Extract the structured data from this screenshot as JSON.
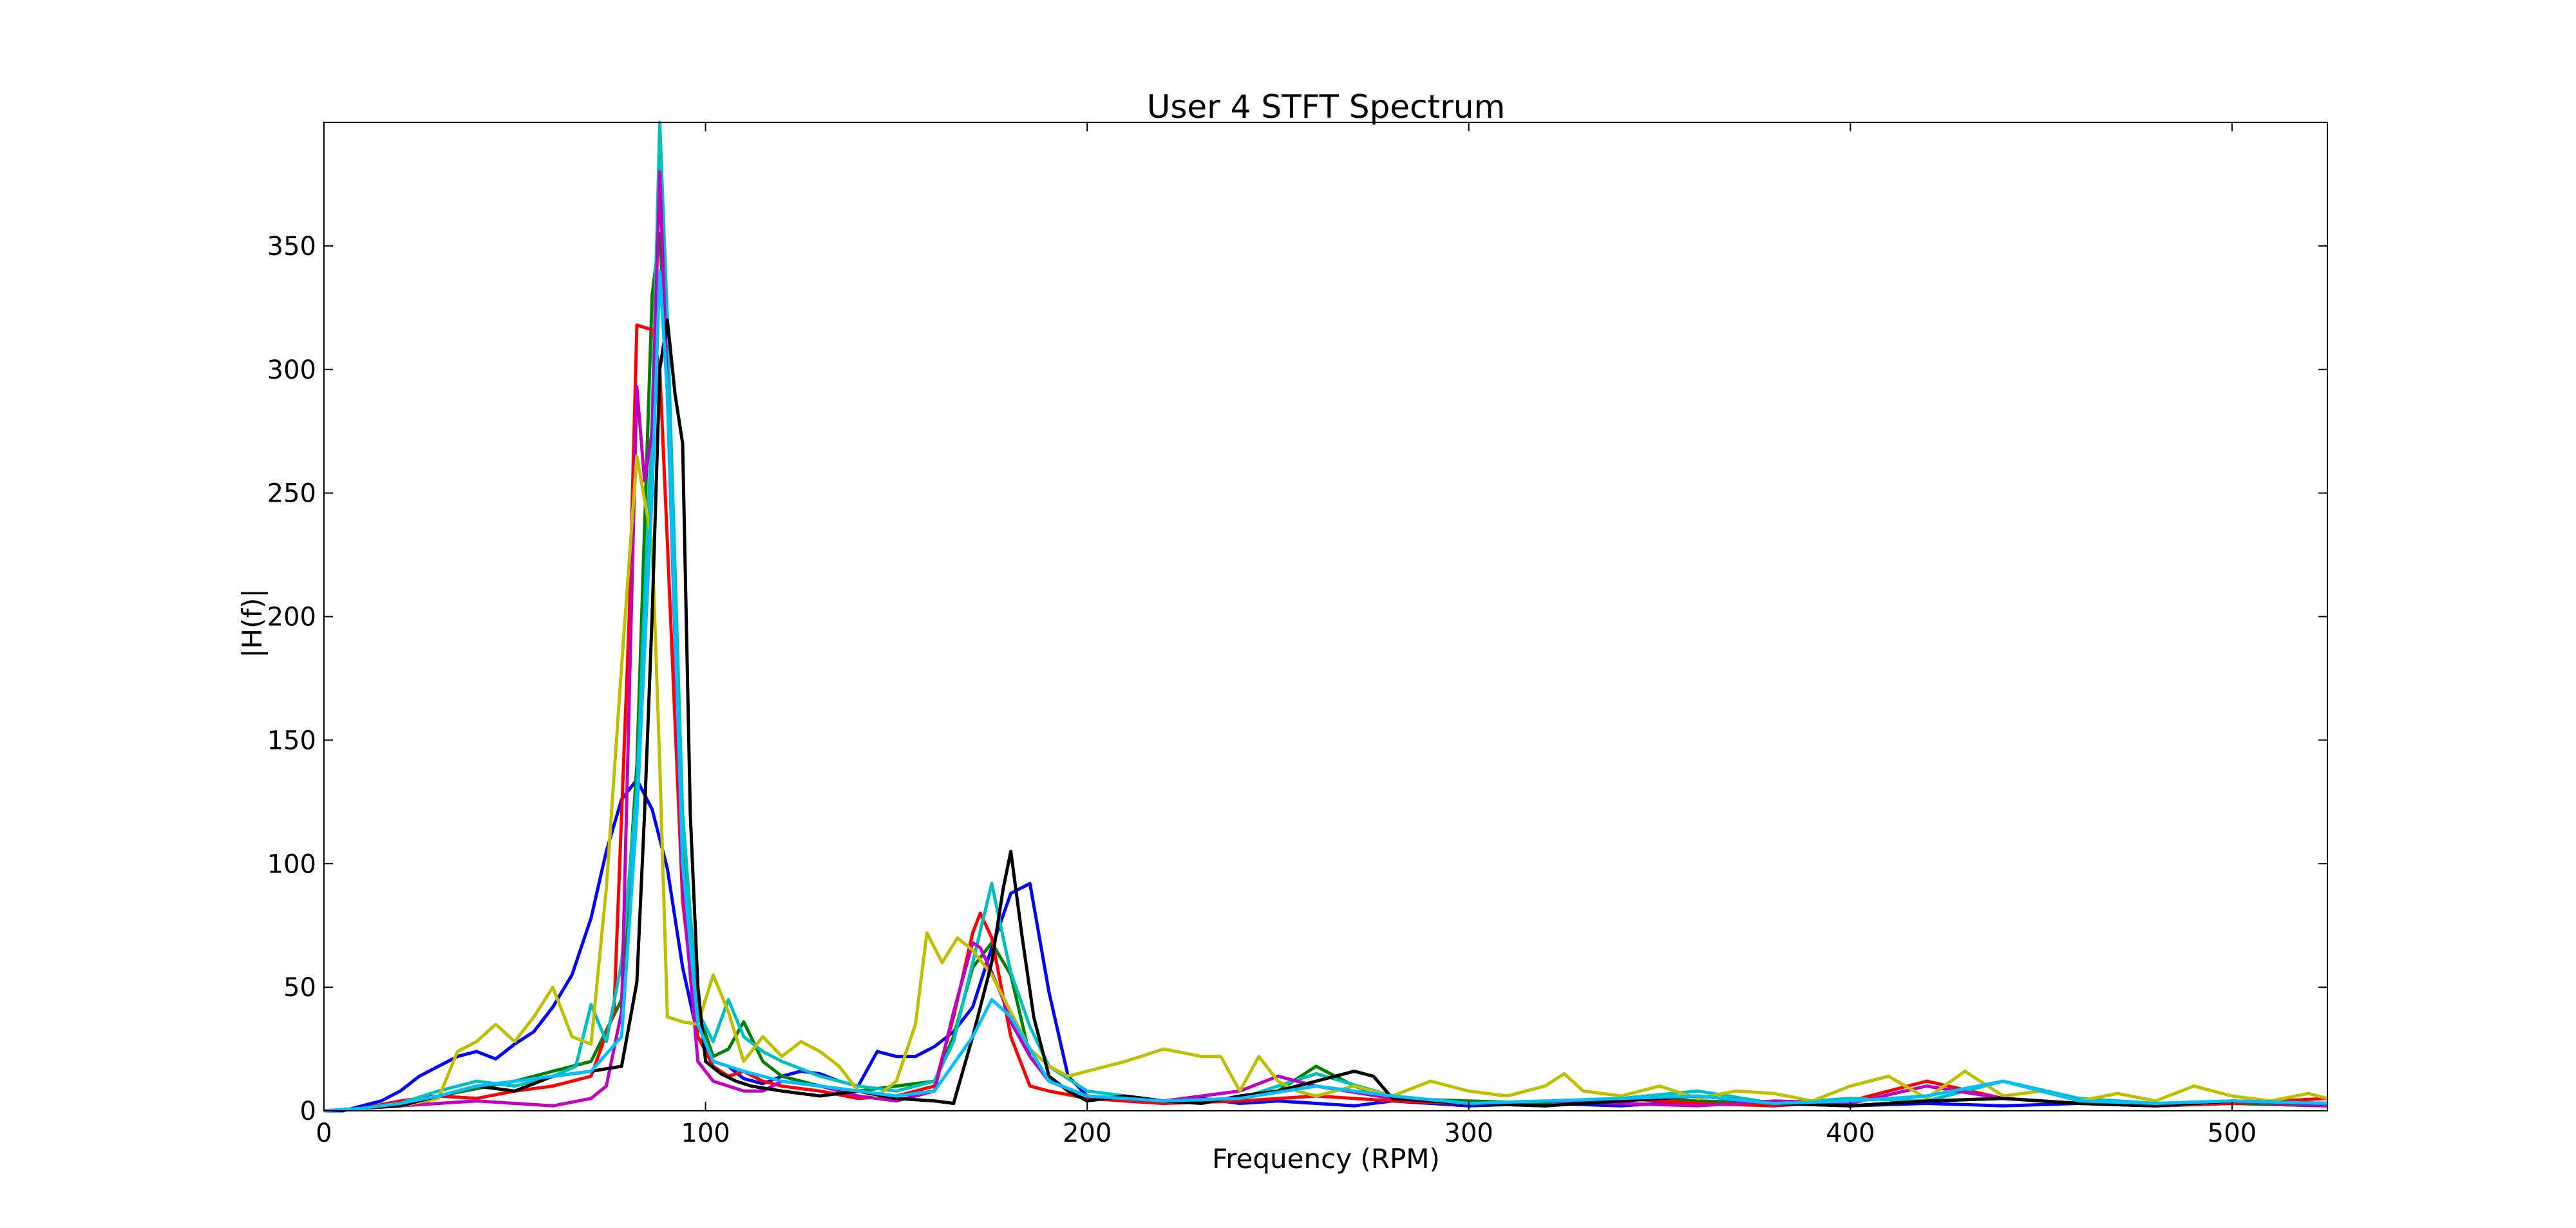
{
  "chart_data": {
    "type": "line",
    "title": "User 4 STFT Spectrum",
    "xlabel": "Frequency (RPM)",
    "ylabel": "|H(f)|",
    "xlim": [
      0,
      525
    ],
    "ylim": [
      0,
      400
    ],
    "x_ticks": [
      0,
      100,
      200,
      300,
      400,
      500
    ],
    "y_ticks": [
      0,
      50,
      100,
      150,
      200,
      250,
      300,
      350
    ],
    "grid": false,
    "legend": "none",
    "series": [
      {
        "color": "#0000ff",
        "x": [
          0,
          5,
          10,
          15,
          20,
          25,
          30,
          35,
          40,
          45,
          50,
          55,
          60,
          65,
          70,
          74,
          78,
          82,
          86,
          90,
          94,
          98,
          102,
          106,
          110,
          115,
          120,
          125,
          130,
          135,
          140,
          145,
          150,
          155,
          160,
          165,
          170,
          175,
          180,
          185,
          190,
          195,
          200,
          210,
          220,
          230,
          240,
          250,
          260,
          270,
          280,
          290,
          300,
          320,
          340,
          360,
          380,
          400,
          420,
          440,
          460,
          480,
          500,
          525
        ],
        "y": [
          0,
          0,
          2,
          4,
          8,
          14,
          18,
          22,
          24,
          21,
          27,
          32,
          42,
          55,
          78,
          105,
          126,
          134,
          122,
          98,
          58,
          30,
          20,
          18,
          13,
          11,
          14,
          16,
          15,
          12,
          10,
          24,
          22,
          22,
          26,
          32,
          42,
          66,
          88,
          92,
          48,
          14,
          6,
          4,
          3,
          5,
          3,
          4,
          3,
          2,
          4,
          3,
          2,
          3,
          2,
          4,
          3,
          2,
          3,
          2,
          3,
          2,
          3,
          2
        ]
      },
      {
        "color": "#008000",
        "x": [
          0,
          10,
          20,
          30,
          40,
          50,
          60,
          70,
          78,
          82,
          86,
          88,
          90,
          94,
          98,
          102,
          106,
          110,
          115,
          120,
          130,
          140,
          150,
          160,
          165,
          170,
          175,
          180,
          185,
          190,
          200,
          220,
          240,
          250,
          260,
          270,
          280,
          300,
          320,
          340,
          360,
          380,
          400,
          420,
          440,
          460,
          480,
          500,
          525
        ],
        "y": [
          0,
          1,
          3,
          6,
          9,
          12,
          16,
          20,
          45,
          140,
          330,
          355,
          290,
          110,
          40,
          22,
          25,
          36,
          20,
          14,
          10,
          8,
          10,
          12,
          30,
          58,
          68,
          55,
          22,
          12,
          6,
          4,
          5,
          8,
          18,
          10,
          5,
          4,
          3,
          5,
          4,
          3,
          2,
          4,
          5,
          3,
          2,
          3,
          2
        ]
      },
      {
        "color": "#ff0000",
        "x": [
          0,
          10,
          20,
          30,
          40,
          50,
          60,
          70,
          76,
          80,
          82,
          86,
          88,
          90,
          94,
          98,
          102,
          106,
          110,
          115,
          120,
          130,
          140,
          150,
          160,
          165,
          170,
          172,
          175,
          180,
          185,
          190,
          200,
          220,
          240,
          260,
          280,
          300,
          320,
          340,
          360,
          380,
          400,
          420,
          440,
          460,
          480,
          500,
          525
        ],
        "y": [
          0,
          1,
          4,
          6,
          5,
          8,
          10,
          14,
          40,
          200,
          318,
          316,
          300,
          230,
          85,
          30,
          18,
          14,
          16,
          12,
          10,
          8,
          5,
          6,
          10,
          38,
          72,
          80,
          70,
          30,
          10,
          8,
          5,
          3,
          4,
          6,
          4,
          3,
          2,
          5,
          3,
          2,
          4,
          12,
          5,
          3,
          2,
          3,
          5
        ]
      },
      {
        "color": "#00bfbf",
        "x": [
          0,
          10,
          20,
          30,
          40,
          50,
          60,
          66,
          70,
          74,
          78,
          82,
          86,
          88,
          90,
          94,
          98,
          102,
          106,
          110,
          115,
          120,
          130,
          140,
          150,
          160,
          165,
          170,
          175,
          178,
          180,
          185,
          190,
          200,
          220,
          240,
          260,
          280,
          300,
          320,
          340,
          360,
          380,
          400,
          420,
          440,
          460,
          480,
          500,
          525
        ],
        "y": [
          0,
          1,
          3,
          8,
          12,
          10,
          14,
          18,
          43,
          28,
          60,
          130,
          280,
          400,
          320,
          120,
          40,
          28,
          45,
          30,
          24,
          20,
          14,
          10,
          8,
          12,
          28,
          60,
          92,
          70,
          56,
          34,
          18,
          8,
          4,
          5,
          15,
          6,
          3,
          2,
          5,
          8,
          3,
          5,
          4,
          12,
          5,
          3,
          4,
          3
        ]
      },
      {
        "color": "#bf00bf",
        "x": [
          0,
          10,
          20,
          30,
          40,
          50,
          60,
          70,
          74,
          78,
          82,
          84,
          86,
          88,
          90,
          94,
          98,
          102,
          106,
          110,
          115,
          120,
          130,
          140,
          150,
          160,
          165,
          170,
          172,
          175,
          178,
          180,
          185,
          190,
          200,
          220,
          240,
          250,
          260,
          280,
          300,
          320,
          340,
          360,
          380,
          400,
          420,
          440,
          460,
          480,
          500,
          525
        ],
        "y": [
          0,
          1,
          2,
          3,
          4,
          3,
          2,
          5,
          10,
          40,
          293,
          255,
          275,
          380,
          290,
          90,
          20,
          12,
          10,
          8,
          8,
          12,
          10,
          6,
          4,
          8,
          40,
          68,
          66,
          56,
          45,
          36,
          22,
          12,
          6,
          4,
          8,
          14,
          10,
          5,
          3,
          4,
          3,
          2,
          4,
          3,
          10,
          5,
          3,
          2,
          4,
          2
        ]
      },
      {
        "color": "#bfbf00",
        "x": [
          0,
          10,
          20,
          30,
          35,
          40,
          45,
          50,
          55,
          60,
          65,
          70,
          74,
          78,
          82,
          86,
          88,
          90,
          94,
          98,
          102,
          106,
          110,
          115,
          120,
          125,
          130,
          135,
          140,
          145,
          150,
          155,
          158,
          162,
          166,
          170,
          175,
          180,
          185,
          190,
          195,
          200,
          210,
          220,
          230,
          235,
          240,
          245,
          250,
          255,
          260,
          270,
          280,
          290,
          300,
          310,
          320,
          325,
          330,
          340,
          350,
          360,
          370,
          380,
          390,
          400,
          410,
          420,
          430,
          440,
          450,
          460,
          470,
          480,
          490,
          500,
          510,
          520,
          525
        ],
        "y": [
          0,
          1,
          2,
          5,
          24,
          28,
          35,
          28,
          38,
          50,
          30,
          27,
          90,
          180,
          265,
          230,
          140,
          38,
          36,
          35,
          55,
          40,
          20,
          30,
          22,
          28,
          24,
          18,
          8,
          6,
          12,
          35,
          72,
          60,
          70,
          65,
          55,
          40,
          25,
          18,
          14,
          16,
          20,
          25,
          22,
          22,
          8,
          22,
          12,
          8,
          6,
          10,
          6,
          12,
          8,
          6,
          10,
          15,
          8,
          6,
          10,
          5,
          8,
          7,
          4,
          10,
          14,
          5,
          16,
          6,
          8,
          4,
          7,
          4,
          10,
          6,
          4,
          7,
          5
        ]
      },
      {
        "color": "#000000",
        "x": [
          0,
          10,
          20,
          30,
          40,
          50,
          60,
          70,
          78,
          82,
          84,
          86,
          88,
          90,
          92,
          94,
          96,
          98,
          100,
          104,
          108,
          112,
          120,
          130,
          140,
          150,
          160,
          165,
          170,
          175,
          178,
          180,
          183,
          186,
          190,
          195,
          200,
          210,
          220,
          230,
          240,
          250,
          260,
          270,
          275,
          280,
          290,
          300,
          320,
          340,
          360,
          380,
          400,
          420,
          440,
          460,
          480,
          500,
          525
        ],
        "y": [
          0,
          1,
          2,
          6,
          10,
          8,
          14,
          16,
          18,
          52,
          120,
          200,
          300,
          320,
          290,
          270,
          120,
          50,
          20,
          15,
          12,
          10,
          8,
          6,
          8,
          5,
          4,
          3,
          30,
          60,
          90,
          105,
          70,
          38,
          14,
          8,
          4,
          6,
          4,
          3,
          6,
          8,
          12,
          16,
          14,
          5,
          4,
          3,
          2,
          4,
          6,
          3,
          2,
          4,
          5,
          3,
          2,
          4,
          3
        ]
      },
      {
        "color": "#00bfff",
        "x": [
          0,
          10,
          20,
          30,
          40,
          50,
          60,
          70,
          78,
          82,
          86,
          88,
          90,
          94,
          98,
          102,
          106,
          110,
          120,
          130,
          140,
          150,
          160,
          170,
          175,
          180,
          185,
          190,
          200,
          220,
          240,
          260,
          280,
          300,
          320,
          340,
          360,
          380,
          400,
          420,
          440,
          460,
          480,
          500,
          525
        ],
        "y": [
          0,
          1,
          3,
          6,
          10,
          12,
          14,
          16,
          30,
          120,
          250,
          340,
          290,
          100,
          35,
          20,
          18,
          16,
          12,
          10,
          8,
          6,
          8,
          30,
          45,
          38,
          25,
          12,
          6,
          4,
          5,
          10,
          6,
          3,
          4,
          5,
          6,
          3,
          4,
          6,
          12,
          4,
          3,
          4,
          3
        ]
      }
    ]
  }
}
